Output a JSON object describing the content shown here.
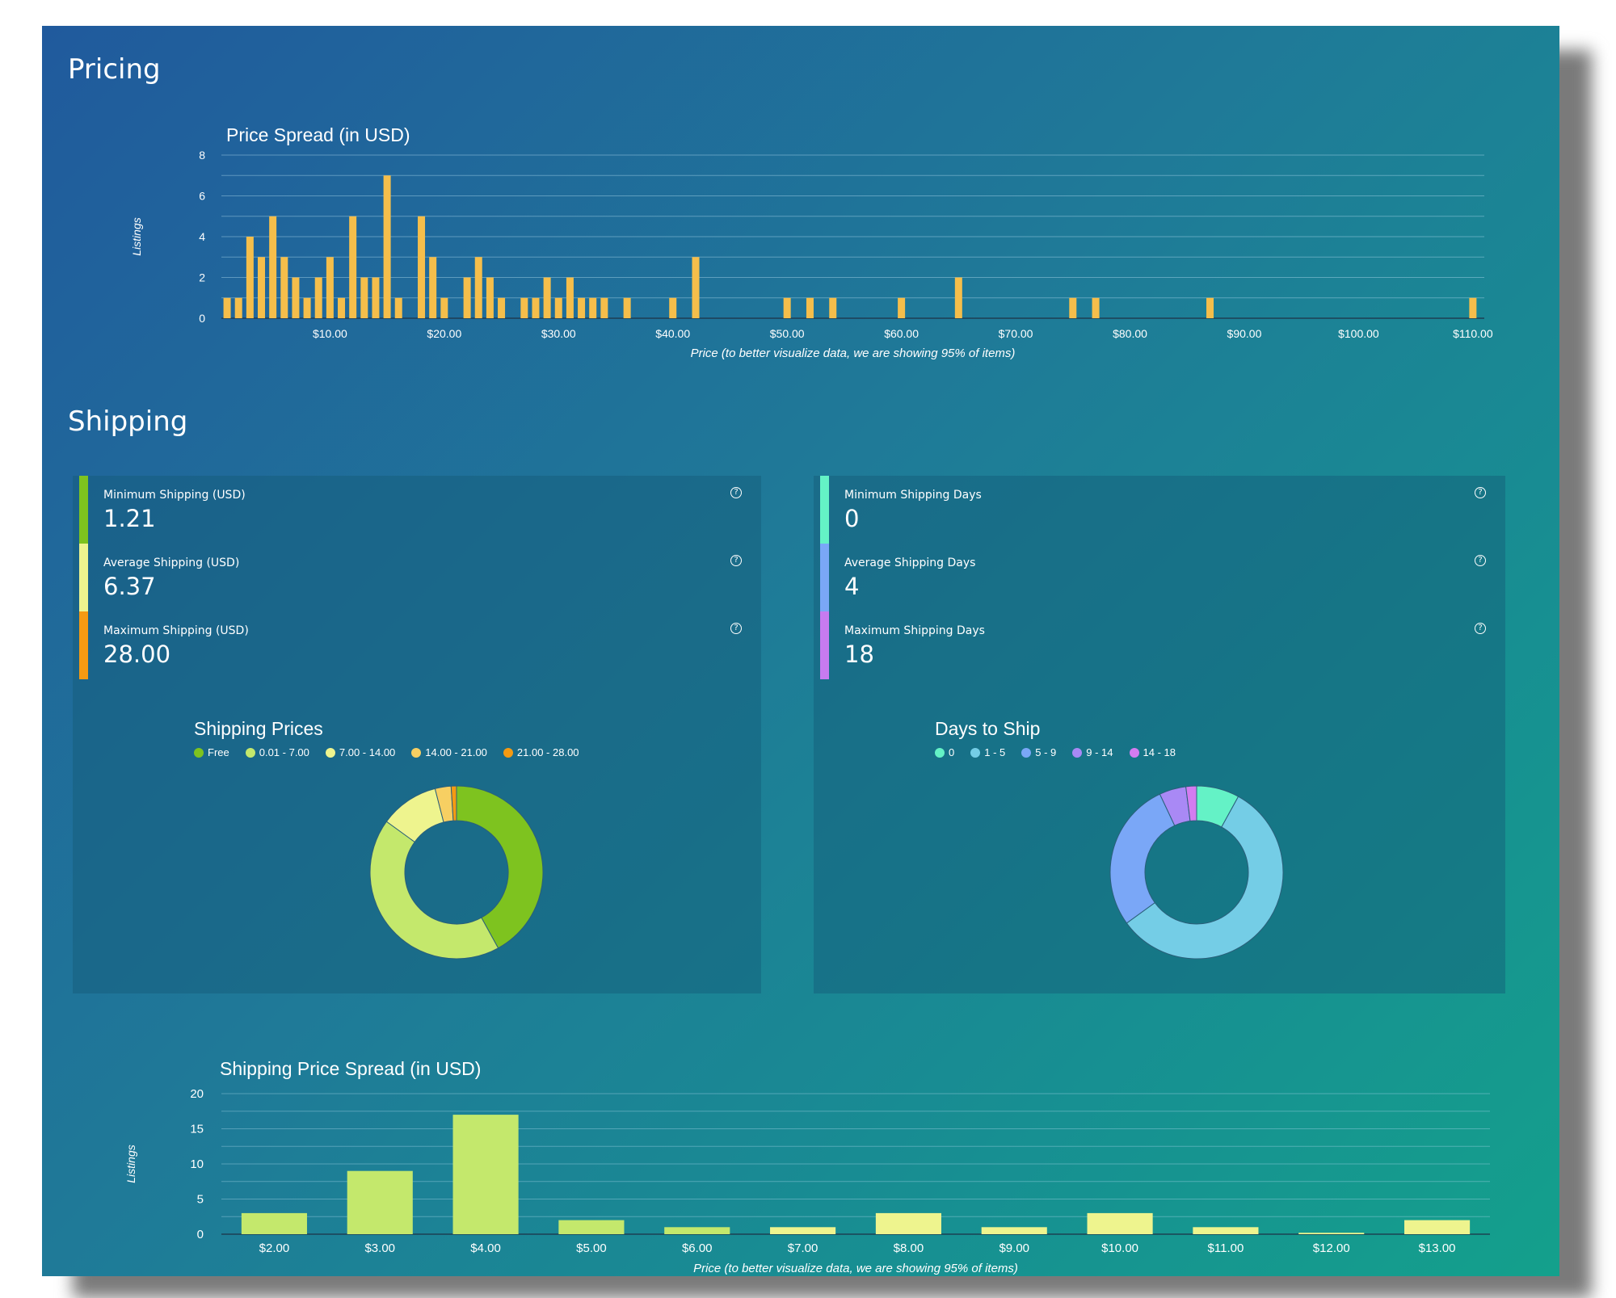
{
  "sections": {
    "pricing": "Pricing",
    "shipping": "Shipping"
  },
  "price_chart": {
    "title": "Price Spread (in USD)",
    "ylabel": "Listings",
    "xlabel": "Price (to better visualize data, we are showing 95% of items)",
    "yticks": [
      "0",
      "2",
      "4",
      "6",
      "8"
    ],
    "xticks": [
      "$10.00",
      "$20.00",
      "$30.00",
      "$40.00",
      "$50.00",
      "$60.00",
      "$70.00",
      "$80.00",
      "$90.00",
      "$100.00",
      "$110.00"
    ],
    "bar_color": "#f5be4b"
  },
  "shipping_stats_usd": [
    {
      "label": "Minimum Shipping (USD)",
      "value": "1.21",
      "color": "#7ec31f"
    },
    {
      "label": "Average Shipping (USD)",
      "value": "6.37",
      "color": "#eef48e"
    },
    {
      "label": "Maximum Shipping (USD)",
      "value": "28.00",
      "color": "#f59a12"
    }
  ],
  "shipping_stats_days": [
    {
      "label": "Minimum Shipping Days",
      "value": "0",
      "color": "#64f2c6"
    },
    {
      "label": "Average Shipping Days",
      "value": "4",
      "color": "#7aa7f7"
    },
    {
      "label": "Maximum Shipping Days",
      "value": "18",
      "color": "#c77bf0"
    }
  ],
  "help_icon": "?",
  "shipping_price_chart_title": "Shipping Prices",
  "days_chart_title": "Days to Ship",
  "shipping_spread_chart": {
    "title": "Shipping Price Spread (in USD)",
    "ylabel": "Listings",
    "xlabel": "Price (to better visualize data, we are showing 95% of items)",
    "yticks": [
      "0",
      "5",
      "10",
      "15",
      "20"
    ]
  },
  "chart_data": [
    {
      "type": "bar",
      "title": "Price Spread (in USD)",
      "xlabel": "Price (to better visualize data, we are showing 95% of items)",
      "ylabel": "Listings",
      "xlim": [
        0.5,
        111
      ],
      "ylim": [
        0,
        8
      ],
      "points": [
        {
          "x": 1,
          "y": 1
        },
        {
          "x": 2,
          "y": 1
        },
        {
          "x": 3,
          "y": 4
        },
        {
          "x": 4,
          "y": 3
        },
        {
          "x": 5,
          "y": 5
        },
        {
          "x": 6,
          "y": 3
        },
        {
          "x": 7,
          "y": 2
        },
        {
          "x": 8,
          "y": 1
        },
        {
          "x": 9,
          "y": 2
        },
        {
          "x": 10,
          "y": 3
        },
        {
          "x": 11,
          "y": 1
        },
        {
          "x": 12,
          "y": 5
        },
        {
          "x": 13,
          "y": 2
        },
        {
          "x": 14,
          "y": 2
        },
        {
          "x": 15,
          "y": 7
        },
        {
          "x": 16,
          "y": 1
        },
        {
          "x": 18,
          "y": 5
        },
        {
          "x": 19,
          "y": 3
        },
        {
          "x": 20,
          "y": 1
        },
        {
          "x": 22,
          "y": 2
        },
        {
          "x": 23,
          "y": 3
        },
        {
          "x": 24,
          "y": 2
        },
        {
          "x": 25,
          "y": 1
        },
        {
          "x": 27,
          "y": 1
        },
        {
          "x": 28,
          "y": 1
        },
        {
          "x": 29,
          "y": 2
        },
        {
          "x": 30,
          "y": 1
        },
        {
          "x": 31,
          "y": 2
        },
        {
          "x": 32,
          "y": 1
        },
        {
          "x": 33,
          "y": 1
        },
        {
          "x": 34,
          "y": 1
        },
        {
          "x": 36,
          "y": 1
        },
        {
          "x": 40,
          "y": 1
        },
        {
          "x": 42,
          "y": 3
        },
        {
          "x": 50,
          "y": 1
        },
        {
          "x": 52,
          "y": 1
        },
        {
          "x": 54,
          "y": 1
        },
        {
          "x": 60,
          "y": 1
        },
        {
          "x": 65,
          "y": 2
        },
        {
          "x": 75,
          "y": 1
        },
        {
          "x": 77,
          "y": 1
        },
        {
          "x": 87,
          "y": 1
        },
        {
          "x": 110,
          "y": 1
        }
      ]
    },
    {
      "type": "pie",
      "title": "Shipping Prices",
      "categories": [
        "Free",
        "0.01 - 7.00",
        "7.00 - 14.00",
        "14.00 - 21.00",
        "21.00 - 28.00"
      ],
      "values": [
        42,
        43,
        11,
        3,
        1
      ],
      "colors": [
        "#7ec31f",
        "#c4e86c",
        "#eef48e",
        "#f7cf62",
        "#f59a12"
      ]
    },
    {
      "type": "pie",
      "title": "Days to Ship",
      "categories": [
        "0",
        "1 - 5",
        "5 - 9",
        "9 - 14",
        "14 - 18"
      ],
      "values": [
        8,
        57,
        28,
        5,
        2
      ],
      "colors": [
        "#64f2c6",
        "#74cde6",
        "#7aa7f7",
        "#a989f5",
        "#d47cf0"
      ]
    },
    {
      "type": "bar",
      "title": "Shipping Price Spread (in USD)",
      "xlabel": "Price (to better visualize data, we are showing 95% of items)",
      "ylabel": "Listings",
      "ylim": [
        0,
        20
      ],
      "categories": [
        "$2.00",
        "$3.00",
        "$4.00",
        "$5.00",
        "$6.00",
        "$7.00",
        "$8.00",
        "$9.00",
        "$10.00",
        "$11.00",
        "$12.00",
        "$13.00"
      ],
      "values": [
        3,
        9,
        17,
        2,
        1,
        1,
        3,
        1,
        3,
        1,
        0.2,
        2
      ],
      "colors": [
        "#c4e86c",
        "#c4e86c",
        "#c4e86c",
        "#c4e86c",
        "#c4e86c",
        "#eef48e",
        "#eef48e",
        "#eef48e",
        "#eef48e",
        "#eef48e",
        "#eef48e",
        "#eef48e"
      ]
    }
  ]
}
